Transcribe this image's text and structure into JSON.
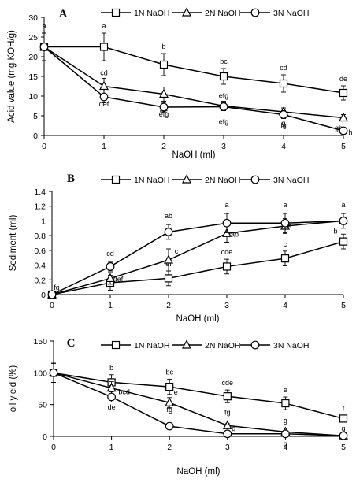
{
  "chart_data": [
    {
      "panel": "A",
      "type": "line",
      "x": [
        0,
        1,
        2,
        3,
        4,
        5
      ],
      "xlabel": "NaOH (ml)",
      "ylabel": "Acid value (mg KOH/g)",
      "xlim": [
        0,
        5
      ],
      "ylim": [
        0,
        30
      ],
      "xticks": [
        "0",
        "1",
        "2",
        "3",
        "4",
        "5"
      ],
      "yticks": [
        "0",
        "5",
        "10",
        "15",
        "20",
        "25",
        "30"
      ],
      "grid": false,
      "legend_position": "top",
      "series": [
        {
          "name": "1N NaOH",
          "marker": "square",
          "values": [
            22.5,
            22.5,
            18.0,
            15.0,
            13.2,
            10.8
          ],
          "errors": [
            3.5,
            3.5,
            2.8,
            2.0,
            2.2,
            1.8
          ],
          "labels": [
            "a",
            "a",
            "b",
            "bc",
            "cd",
            "de"
          ]
        },
        {
          "name": "2N NaOH",
          "marker": "triangle",
          "values": [
            22.5,
            12.5,
            10.5,
            7.5,
            6.0,
            4.5
          ],
          "errors": [
            3.5,
            2.0,
            1.8,
            1.2,
            1.0,
            0.8
          ],
          "labels": [
            "",
            "cd",
            "de",
            "efg",
            "fg",
            "gh"
          ]
        },
        {
          "name": "3N NaOH",
          "marker": "circle",
          "values": [
            22.5,
            9.8,
            7.2,
            7.3,
            5.3,
            1.2
          ],
          "errors": [
            3.5,
            1.5,
            1.2,
            1.0,
            1.0,
            0.5
          ],
          "labels": [
            "",
            "def",
            "efg",
            "efg",
            "g",
            "h"
          ]
        }
      ]
    },
    {
      "panel": "B",
      "type": "line",
      "x": [
        0,
        1,
        2,
        3,
        4,
        5
      ],
      "xlabel": "NaOH (ml)",
      "ylabel": "Sediment (ml)",
      "xlim": [
        0,
        5
      ],
      "ylim": [
        0,
        1.4
      ],
      "xticks": [
        "0",
        "1",
        "2",
        "3",
        "4",
        "5"
      ],
      "yticks": [
        "0",
        "0.2",
        "0.4",
        "0.6",
        "0.8",
        "1",
        "1.2",
        "1.4"
      ],
      "grid": false,
      "legend_position": "top",
      "series": [
        {
          "name": "1N NaOH",
          "marker": "square",
          "values": [
            0.0,
            0.16,
            0.22,
            0.38,
            0.49,
            0.72
          ],
          "errors": [
            0.02,
            0.1,
            0.1,
            0.1,
            0.1,
            0.1
          ],
          "labels": [
            "fg",
            "",
            "ef",
            "cde",
            "c",
            "b"
          ]
        },
        {
          "name": "2N NaOH",
          "marker": "triangle",
          "values": [
            0.0,
            0.22,
            0.47,
            0.83,
            0.93,
            1.0
          ],
          "errors": [
            0.02,
            0.08,
            0.15,
            0.12,
            0.1,
            0.05
          ],
          "labels": [
            "",
            "def",
            "c",
            "ab",
            "a",
            ""
          ]
        },
        {
          "name": "3N NaOH",
          "marker": "circle",
          "values": [
            0.0,
            0.38,
            0.85,
            0.97,
            0.97,
            1.0
          ],
          "errors": [
            0.02,
            0.06,
            0.1,
            0.13,
            0.13,
            0.1
          ],
          "labels": [
            "",
            "cd",
            "ab",
            "a",
            "a",
            "a"
          ]
        }
      ]
    },
    {
      "panel": "C",
      "type": "line",
      "x": [
        0,
        1,
        2,
        3,
        4,
        5
      ],
      "xlabel": "NaOH (ml)",
      "ylabel": "oil yield (%)",
      "xlim": [
        0,
        5
      ],
      "ylim": [
        0,
        150
      ],
      "xticks": [
        "0",
        "1",
        "2",
        "3",
        "4",
        "5"
      ],
      "yticks": [
        "0",
        "50",
        "100",
        "150"
      ],
      "grid": false,
      "legend_position": "top",
      "series": [
        {
          "name": "1N NaOH",
          "marker": "square",
          "values": [
            100,
            85,
            78,
            63,
            52,
            28
          ],
          "errors": [
            15,
            12,
            12,
            10,
            10,
            5
          ],
          "labels": [
            "",
            "b",
            "bc",
            "cde",
            "e",
            "f"
          ]
        },
        {
          "name": "2N NaOH",
          "marker": "triangle",
          "values": [
            100,
            76,
            53,
            17,
            7,
            1
          ],
          "errors": [
            15,
            10,
            8,
            3,
            2,
            1
          ],
          "labels": [
            "",
            "bcd",
            "e",
            "fg",
            "g",
            "g"
          ]
        },
        {
          "name": "3N NaOH",
          "marker": "circle",
          "values": [
            100,
            62,
            16,
            4,
            4,
            1
          ],
          "errors": [
            15,
            8,
            3,
            2,
            2,
            1
          ],
          "labels": [
            "",
            "de",
            "fg",
            "g",
            "g",
            ""
          ]
        }
      ]
    }
  ]
}
